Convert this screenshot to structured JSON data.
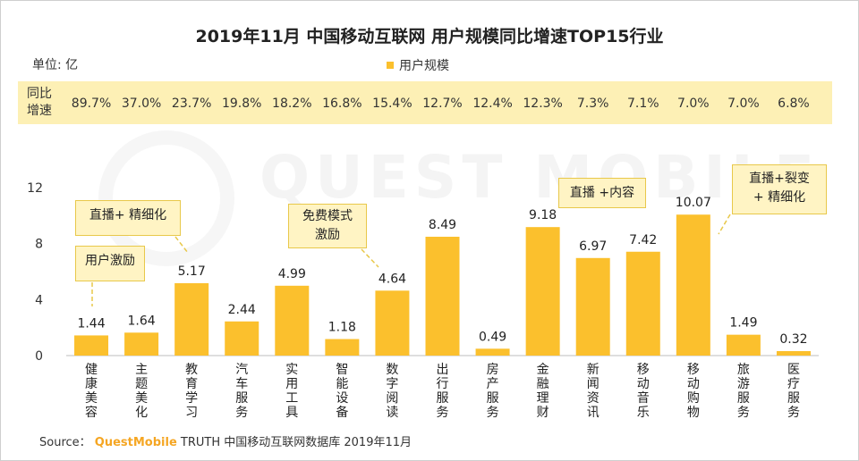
{
  "title": "2019年11月 中国移动互联网 用户规模同比增速TOP15行业",
  "unit_label": "单位: 亿",
  "legend_label": "用户规模",
  "growth_label_line1": "同比",
  "growth_label_line2": "增速",
  "watermark": "QUEST MOBILE",
  "source": {
    "prefix": "Source：",
    "brand": "QuestMobile",
    "rest": "TRUTH 中国移动互联网数据库 2019年11月"
  },
  "callouts": {
    "user_incentive": "用户激励",
    "live_refine": "直播+ 精细化",
    "free_mode_line1": "免费模式",
    "free_mode_line2": "激励",
    "live_content": "直播 +内容",
    "live_fission_line1": "直播+裂变",
    "live_fission_line2": "+ 精细化"
  },
  "colors": {
    "bar": "#FBC02D",
    "band": "#FDF0B5",
    "brand": "#F5A623"
  },
  "chart_data": {
    "type": "bar",
    "categories": [
      "健康美容",
      "主题美化",
      "教育学习",
      "汽车服务",
      "实用工具",
      "智能设备",
      "数字阅读",
      "出行服务",
      "房产服务",
      "金融理财",
      "新闻资讯",
      "移动音乐",
      "移动购物",
      "旅游服务",
      "医疗服务"
    ],
    "series": [
      {
        "name": "用户规模",
        "values": [
          1.44,
          1.64,
          5.17,
          2.44,
          4.99,
          1.18,
          4.64,
          8.49,
          0.49,
          9.18,
          6.97,
          7.42,
          10.07,
          1.49,
          0.32
        ]
      }
    ],
    "value_labels": [
      "1.44",
      "1.64",
      "5.17",
      "2.44",
      "4.99",
      "1.18",
      "4.64",
      "8.49",
      "0.49",
      "9.18",
      "6.97",
      "7.42",
      "10.07",
      "1.49",
      "0.32"
    ],
    "growth": [
      "89.7%",
      "37.0%",
      "23.7%",
      "19.8%",
      "18.2%",
      "16.8%",
      "15.4%",
      "12.7%",
      "12.4%",
      "12.3%",
      "7.3%",
      "7.1%",
      "7.0%",
      "7.0%",
      "6.8%"
    ],
    "yticks": [
      "0",
      "4",
      "8",
      "12"
    ],
    "ylim": [
      0,
      12
    ],
    "grid": false,
    "legend_position": "top-center"
  }
}
